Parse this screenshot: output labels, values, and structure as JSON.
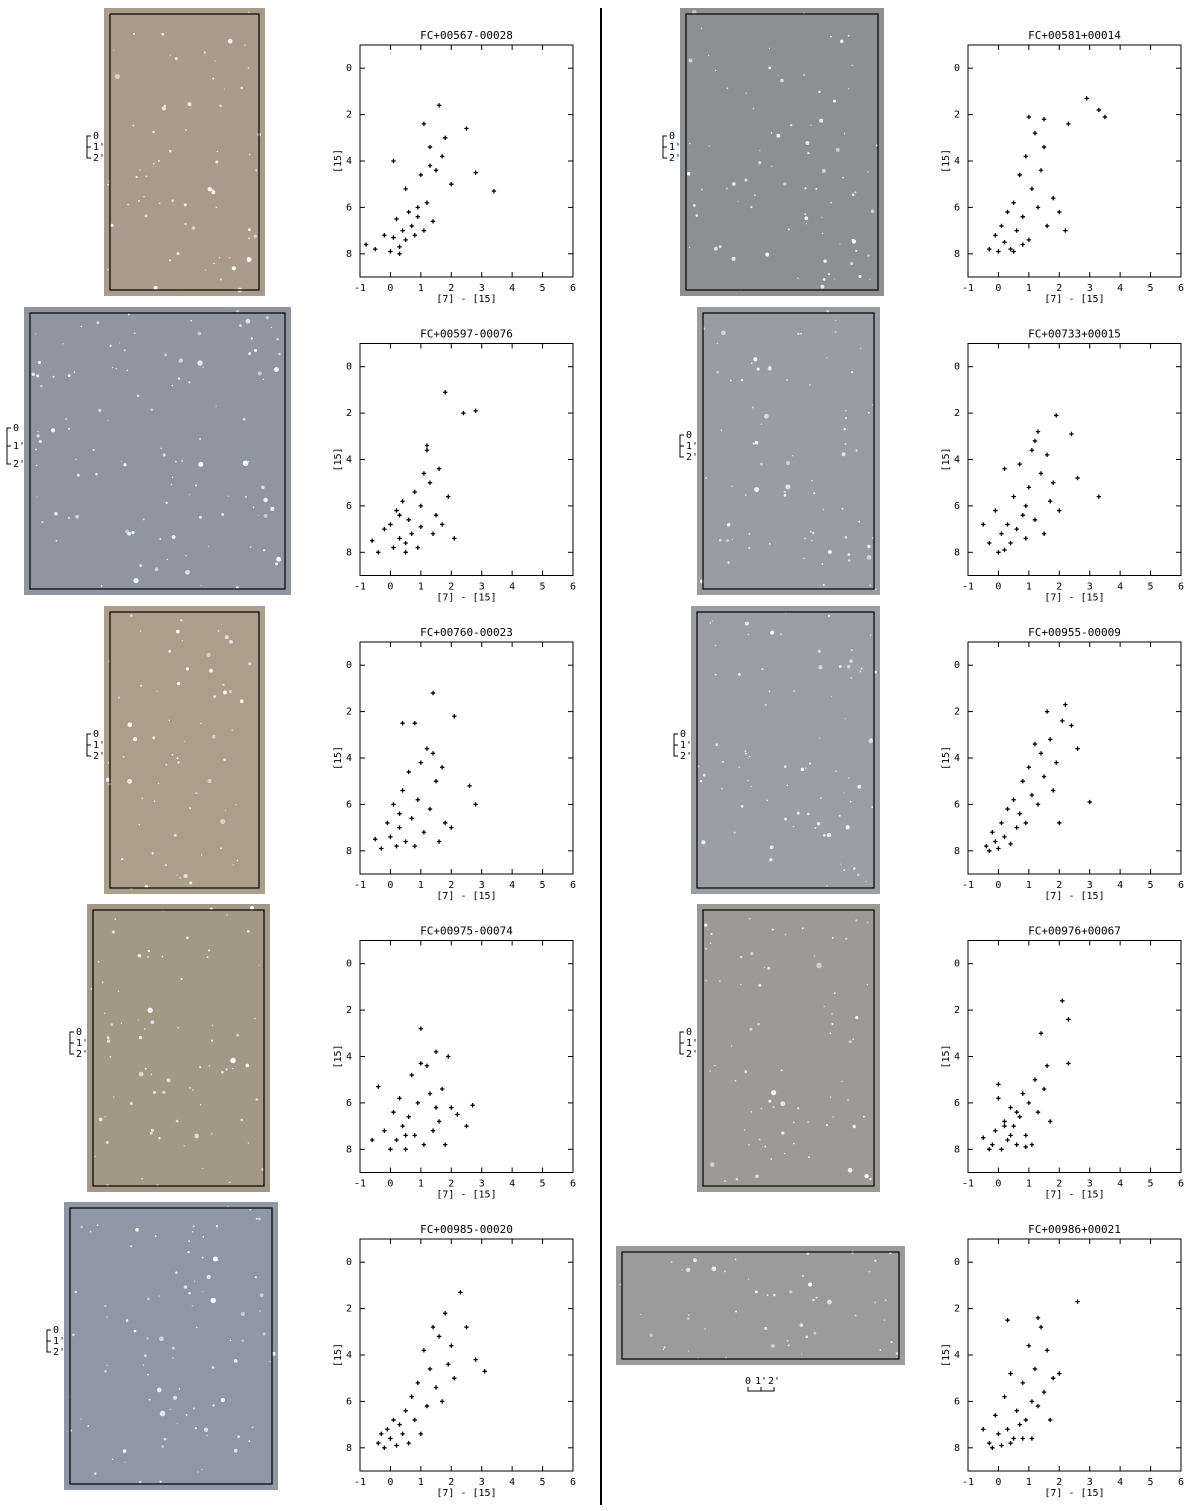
{
  "chart_data": [
    {
      "type": "scatter",
      "title": "FC+00567-00028",
      "xlabel": "[7] - [15]",
      "ylabel": "[15]",
      "color": "#000000",
      "marker": "+",
      "xlim": [
        -1,
        6
      ],
      "ylim": [
        9,
        -1
      ],
      "xticks": [
        -1,
        0,
        1,
        2,
        3,
        4,
        5,
        6
      ],
      "yticks": [
        0,
        2,
        4,
        6,
        8
      ],
      "x": [
        -0.8,
        -0.5,
        -0.2,
        0,
        0.1,
        0.2,
        0.3,
        0.4,
        0.5,
        0.6,
        0.7,
        0.8,
        0.9,
        1.0,
        1.1,
        1.2,
        1.3,
        1.4,
        1.5,
        1.6,
        1.7,
        1.8,
        2.0,
        2.5,
        2.8,
        3.4,
        0.1,
        0.5,
        0.9,
        1.3,
        1.1,
        0.3
      ],
      "y": [
        7.6,
        7.8,
        7.2,
        7.9,
        7.3,
        6.5,
        7.7,
        7.0,
        7.4,
        6.2,
        6.8,
        7.2,
        6.0,
        4.6,
        2.4,
        5.8,
        4.2,
        6.6,
        4.4,
        1.6,
        3.8,
        3.0,
        5.0,
        2.6,
        4.5,
        5.3,
        4.0,
        5.2,
        6.4,
        3.4,
        7.0,
        8.0
      ]
    },
    {
      "type": "scatter",
      "title": "FC+00581+00014",
      "xlabel": "[7] - [15]",
      "ylabel": "[15]",
      "color": "#000000",
      "marker": "+",
      "xlim": [
        -1,
        6
      ],
      "ylim": [
        9,
        -1
      ],
      "xticks": [
        -1,
        0,
        1,
        2,
        3,
        4,
        5,
        6
      ],
      "yticks": [
        0,
        2,
        4,
        6,
        8
      ],
      "x": [
        -0.3,
        -0.1,
        0,
        0.1,
        0.2,
        0.3,
        0.4,
        0.5,
        0.6,
        0.7,
        0.8,
        0.9,
        1.0,
        1.0,
        1.1,
        1.2,
        1.3,
        1.4,
        1.5,
        1.6,
        1.8,
        2.0,
        2.2,
        2.3,
        2.9,
        3.3,
        3.5,
        0.5,
        0.8,
        1.5
      ],
      "y": [
        7.8,
        7.2,
        7.9,
        6.8,
        7.5,
        6.2,
        7.8,
        5.8,
        7.0,
        4.6,
        6.4,
        3.8,
        2.1,
        7.4,
        5.2,
        2.8,
        6.0,
        4.4,
        3.4,
        6.8,
        5.6,
        6.2,
        7.0,
        2.4,
        1.3,
        1.8,
        2.1,
        7.9,
        7.6,
        2.2
      ]
    },
    {
      "type": "scatter",
      "title": "FC+00597-00076",
      "xlabel": "[7] - [15]",
      "ylabel": "[15]",
      "color": "#000000",
      "marker": "+",
      "xlim": [
        -1,
        6
      ],
      "ylim": [
        9,
        -1
      ],
      "xticks": [
        -1,
        0,
        1,
        2,
        3,
        4,
        5,
        6
      ],
      "yticks": [
        0,
        2,
        4,
        6,
        8
      ],
      "x": [
        -0.6,
        -0.4,
        -0.2,
        0,
        0.1,
        0.2,
        0.3,
        0.4,
        0.5,
        0.6,
        0.7,
        0.8,
        0.9,
        1.0,
        1.1,
        1.2,
        1.3,
        1.4,
        1.5,
        1.6,
        1.7,
        1.8,
        1.9,
        2.1,
        2.4,
        2.8,
        1.2,
        0.5,
        1.0,
        0.3
      ],
      "y": [
        7.5,
        8.0,
        7.0,
        6.8,
        7.8,
        6.2,
        7.4,
        5.8,
        8.0,
        6.6,
        7.2,
        5.4,
        7.8,
        6.0,
        4.6,
        3.6,
        5.0,
        7.2,
        6.4,
        4.4,
        6.8,
        1.1,
        5.6,
        7.4,
        2.0,
        1.9,
        3.4,
        7.6,
        6.9,
        6.4
      ]
    },
    {
      "type": "scatter",
      "title": "FC+00733+00015",
      "xlabel": "[7] - [15]",
      "ylabel": "[15]",
      "color": "#000000",
      "marker": "+",
      "xlim": [
        -1,
        6
      ],
      "ylim": [
        9,
        -1
      ],
      "xticks": [
        -1,
        0,
        1,
        2,
        3,
        4,
        5,
        6
      ],
      "yticks": [
        0,
        2,
        4,
        6,
        8
      ],
      "x": [
        -0.5,
        -0.3,
        -0.1,
        0,
        0.1,
        0.2,
        0.3,
        0.4,
        0.5,
        0.6,
        0.7,
        0.8,
        0.9,
        1.0,
        1.1,
        1.2,
        1.3,
        1.4,
        1.5,
        1.6,
        1.7,
        1.8,
        1.9,
        2.0,
        2.4,
        2.6,
        3.3,
        0.2,
        0.9,
        1.2
      ],
      "y": [
        6.8,
        7.6,
        6.2,
        8.0,
        7.2,
        4.4,
        6.8,
        7.6,
        5.6,
        7.0,
        4.2,
        6.4,
        7.4,
        5.2,
        3.6,
        6.6,
        2.8,
        4.6,
        7.2,
        3.8,
        5.8,
        5.0,
        2.1,
        6.2,
        2.9,
        4.8,
        5.6,
        7.9,
        6.0,
        3.2
      ]
    },
    {
      "type": "scatter",
      "title": "FC+00760-00023",
      "xlabel": "[7] - [15]",
      "ylabel": "[15]",
      "color": "#000000",
      "marker": "+",
      "xlim": [
        -1,
        6
      ],
      "ylim": [
        9,
        -1
      ],
      "xticks": [
        -1,
        0,
        1,
        2,
        3,
        4,
        5,
        6
      ],
      "yticks": [
        0,
        2,
        4,
        6,
        8
      ],
      "x": [
        -0.5,
        -0.3,
        -0.1,
        0,
        0.1,
        0.2,
        0.3,
        0.4,
        0.5,
        0.6,
        0.7,
        0.8,
        0.9,
        1.0,
        1.1,
        1.2,
        1.3,
        1.4,
        1.5,
        1.6,
        1.7,
        1.8,
        2.0,
        2.1,
        2.6,
        2.8,
        0.4,
        0.8,
        1.4,
        0.3
      ],
      "y": [
        7.5,
        7.9,
        6.8,
        7.4,
        6.0,
        7.8,
        7.0,
        5.4,
        7.6,
        4.6,
        6.6,
        7.8,
        5.8,
        4.2,
        7.2,
        3.6,
        6.2,
        1.2,
        5.0,
        7.6,
        4.4,
        6.8,
        7.0,
        2.2,
        5.2,
        6.0,
        2.5,
        2.5,
        3.8,
        6.4
      ]
    },
    {
      "type": "scatter",
      "title": "FC+00955-00009",
      "xlabel": "[7] - [15]",
      "ylabel": "[15]",
      "color": "#000000",
      "marker": "+",
      "xlim": [
        -1,
        6
      ],
      "ylim": [
        9,
        -1
      ],
      "xticks": [
        -1,
        0,
        1,
        2,
        3,
        4,
        5,
        6
      ],
      "yticks": [
        0,
        2,
        4,
        6,
        8
      ],
      "x": [
        -0.4,
        -0.3,
        -0.2,
        -0.1,
        0,
        0.1,
        0.2,
        0.3,
        0.4,
        0.5,
        0.6,
        0.7,
        0.8,
        0.9,
        1.0,
        1.1,
        1.2,
        1.3,
        1.4,
        1.5,
        1.6,
        1.7,
        1.8,
        1.9,
        2.0,
        2.2,
        2.4,
        2.6,
        3.0,
        2.1
      ],
      "y": [
        7.8,
        8.0,
        7.2,
        7.6,
        7.9,
        6.8,
        7.4,
        6.2,
        7.7,
        5.8,
        7.0,
        6.4,
        5.0,
        6.8,
        4.4,
        5.6,
        3.4,
        6.0,
        3.8,
        4.8,
        2.0,
        3.2,
        5.4,
        4.2,
        6.8,
        1.7,
        2.6,
        3.6,
        5.9,
        2.4
      ]
    },
    {
      "type": "scatter",
      "title": "FC+00975-00074",
      "xlabel": "[7] - [15]",
      "ylabel": "[15]",
      "color": "#000000",
      "marker": "+",
      "xlim": [
        -1,
        6
      ],
      "ylim": [
        9,
        -1
      ],
      "xticks": [
        -1,
        0,
        1,
        2,
        3,
        4,
        5,
        6
      ],
      "yticks": [
        0,
        2,
        4,
        6,
        8
      ],
      "x": [
        -0.6,
        -0.4,
        -0.2,
        0,
        0.1,
        0.2,
        0.3,
        0.4,
        0.5,
        0.6,
        0.7,
        0.8,
        0.9,
        1.0,
        1.1,
        1.2,
        1.3,
        1.4,
        1.5,
        1.6,
        1.7,
        1.8,
        1.9,
        2.0,
        2.2,
        2.5,
        2.7,
        0.5,
        1.0,
        1.5
      ],
      "y": [
        7.6,
        5.3,
        7.2,
        8.0,
        6.4,
        7.6,
        5.8,
        7.0,
        8.0,
        6.6,
        4.8,
        7.4,
        6.0,
        2.8,
        7.8,
        4.4,
        5.6,
        7.2,
        3.8,
        6.8,
        5.4,
        7.8,
        4.0,
        6.2,
        6.5,
        7.0,
        6.1,
        7.4,
        4.3,
        6.2
      ]
    },
    {
      "type": "scatter",
      "title": "FC+00976+00067",
      "xlabel": "[7] - [15]",
      "ylabel": "[15]",
      "color": "#000000",
      "marker": "+",
      "xlim": [
        -1,
        6
      ],
      "ylim": [
        9,
        -1
      ],
      "xticks": [
        -1,
        0,
        1,
        2,
        3,
        4,
        5,
        6
      ],
      "yticks": [
        0,
        2,
        4,
        6,
        8
      ],
      "x": [
        -0.5,
        -0.3,
        -0.2,
        -0.1,
        0,
        0.1,
        0.2,
        0.3,
        0.4,
        0.5,
        0.6,
        0.7,
        0.8,
        0.9,
        1.0,
        1.1,
        1.2,
        1.3,
        1.4,
        1.5,
        1.6,
        1.7,
        2.1,
        2.3,
        2.3,
        0.0,
        0.2,
        0.4,
        0.6,
        0.9
      ],
      "y": [
        7.5,
        8.0,
        7.8,
        7.2,
        5.2,
        8.0,
        6.8,
        7.6,
        6.2,
        7.0,
        7.8,
        6.6,
        5.6,
        7.4,
        6.0,
        7.8,
        5.0,
        6.4,
        3.0,
        5.4,
        4.4,
        6.8,
        1.6,
        2.4,
        4.3,
        5.8,
        7.0,
        7.4,
        6.4,
        7.9
      ]
    },
    {
      "type": "scatter",
      "title": "FC+00985-00020",
      "xlabel": "[7] - [15]",
      "ylabel": "[15]",
      "color": "#000000",
      "marker": "+",
      "xlim": [
        -1,
        6
      ],
      "ylim": [
        9,
        -1
      ],
      "xticks": [
        -1,
        0,
        1,
        2,
        3,
        4,
        5,
        6
      ],
      "yticks": [
        0,
        2,
        4,
        6,
        8
      ],
      "x": [
        -0.4,
        -0.3,
        -0.2,
        -0.1,
        0,
        0.1,
        0.2,
        0.3,
        0.4,
        0.5,
        0.6,
        0.7,
        0.8,
        0.9,
        1.0,
        1.1,
        1.2,
        1.3,
        1.4,
        1.5,
        1.6,
        1.7,
        1.8,
        1.9,
        2.0,
        2.1,
        2.3,
        2.5,
        2.8,
        3.1
      ],
      "y": [
        7.8,
        7.4,
        8.0,
        7.2,
        7.6,
        6.8,
        7.9,
        7.0,
        7.4,
        6.4,
        7.8,
        5.8,
        6.8,
        5.2,
        7.4,
        3.8,
        6.2,
        4.6,
        2.8,
        5.4,
        3.2,
        6.0,
        2.2,
        4.4,
        3.6,
        5.0,
        1.3,
        2.8,
        4.2,
        4.7
      ]
    },
    {
      "type": "scatter",
      "title": "FC+00986+00021",
      "xlabel": "[7] - [15]",
      "ylabel": "[15]",
      "color": "#000000",
      "marker": "+",
      "xlim": [
        -1,
        6
      ],
      "ylim": [
        9,
        -1
      ],
      "xticks": [
        -1,
        0,
        1,
        2,
        3,
        4,
        5,
        6
      ],
      "yticks": [
        0,
        2,
        4,
        6,
        8
      ],
      "x": [
        -0.5,
        -0.3,
        -0.2,
        -0.1,
        0,
        0.1,
        0.2,
        0.3,
        0.4,
        0.5,
        0.6,
        0.7,
        0.8,
        0.9,
        1.0,
        1.1,
        1.2,
        1.3,
        1.4,
        1.5,
        1.6,
        1.7,
        1.8,
        2.0,
        2.6,
        0.3,
        1.3,
        0.4,
        0.8,
        1.1
      ],
      "y": [
        7.2,
        7.8,
        8.0,
        6.6,
        7.4,
        7.9,
        5.8,
        7.2,
        4.8,
        7.6,
        6.4,
        7.0,
        5.2,
        6.8,
        3.6,
        7.6,
        4.6,
        6.2,
        2.8,
        5.6,
        3.8,
        6.8,
        5.0,
        4.8,
        1.7,
        2.5,
        2.4,
        7.8,
        7.6,
        6.0
      ]
    }
  ],
  "scale_bars": [
    {
      "labels": [
        "0",
        "1'",
        "2'"
      ]
    },
    {
      "labels": [
        "0",
        "1'",
        "2'"
      ]
    },
    {
      "labels": [
        "0",
        "1'",
        "2'"
      ]
    },
    {
      "labels": [
        "0",
        "1'",
        "2'"
      ]
    },
    {
      "labels": [
        "0",
        "1'",
        "2'"
      ]
    },
    {
      "labels": [
        "0",
        "1'",
        "2'"
      ]
    },
    {
      "labels": [
        "0",
        "1'",
        "2'"
      ]
    },
    {
      "labels": [
        "0",
        "1'",
        "2'"
      ]
    },
    {
      "labels": [
        "0",
        "1'",
        "2'"
      ]
    },
    {
      "labels": [
        "0",
        "1'",
        "2'"
      ]
    }
  ]
}
